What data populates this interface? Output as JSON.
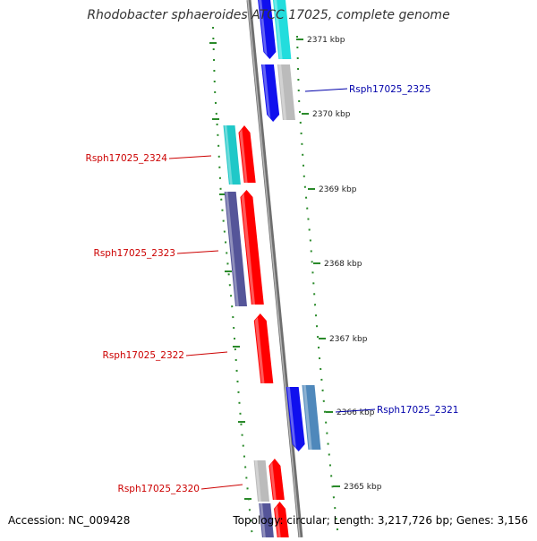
{
  "header": {
    "title": "Rhodobacter sphaeroides ATCC 17025, complete genome"
  },
  "footer": {
    "accession": "Accession: NC_009428",
    "topology": "Topology: circular; Length: 3,217,726 bp; Genes: 3,156"
  },
  "colors": {
    "backbone": "#888888",
    "tick": "#2a8a2a",
    "forward_label": "#cc0000",
    "reverse_label": "#0000aa",
    "red": "#ff0000",
    "blue": "#1010ee",
    "cyan": "#22dddd",
    "teal": "#20c8c8",
    "gray": "#bbbbbb",
    "navy": "#555599",
    "steel": "#4f88bb"
  },
  "ruler": {
    "ticks": [
      {
        "label": "2371 kbp"
      },
      {
        "label": "2370 kbp"
      },
      {
        "label": "2369 kbp"
      },
      {
        "label": "2368 kbp"
      },
      {
        "label": "2367 kbp"
      },
      {
        "label": "2366 kbp"
      },
      {
        "label": "2365 kbp"
      }
    ]
  },
  "genes": [
    {
      "label": "Rsph17025_2325",
      "strand": "reverse"
    },
    {
      "label": "Rsph17025_2324",
      "strand": "forward"
    },
    {
      "label": "Rsph17025_2323",
      "strand": "forward"
    },
    {
      "label": "Rsph17025_2322",
      "strand": "forward"
    },
    {
      "label": "Rsph17025_2321",
      "strand": "reverse"
    },
    {
      "label": "Rsph17025_2320",
      "strand": "forward"
    }
  ]
}
